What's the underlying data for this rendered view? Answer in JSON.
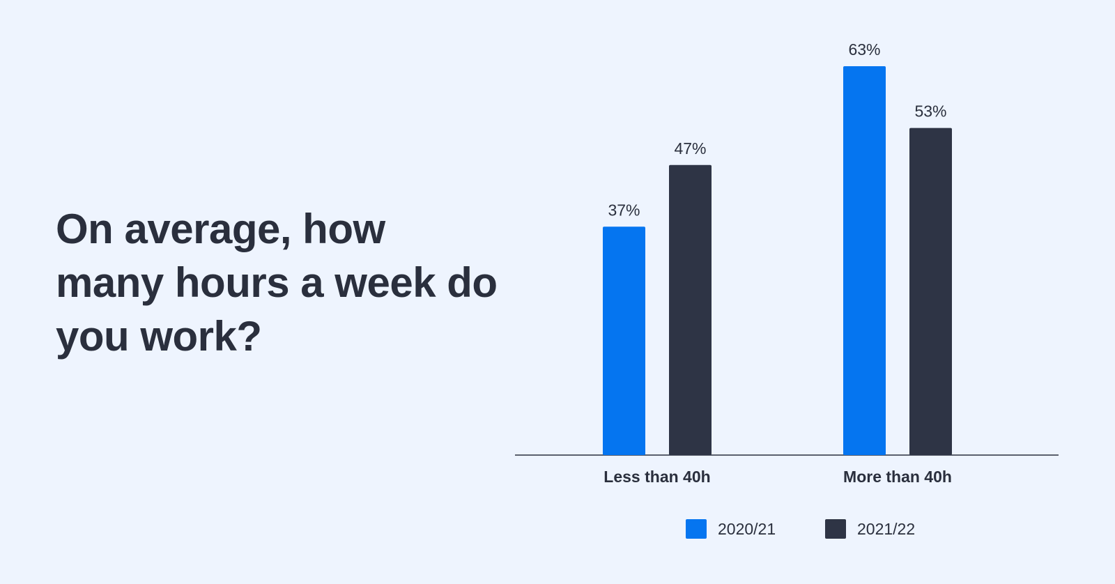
{
  "chart_data": {
    "type": "bar",
    "title": "On average, how many hours a week do you work?",
    "categories": [
      "Less than 40h",
      "More than 40h"
    ],
    "series": [
      {
        "name": "2020/21",
        "color": "#0575f0",
        "values": [
          37,
          63
        ],
        "value_labels": [
          "37%",
          "63%"
        ]
      },
      {
        "name": "2021/22",
        "color": "#2e3445",
        "values": [
          47,
          53
        ],
        "value_labels": [
          "47%",
          "53%"
        ]
      }
    ],
    "legend": "bottom"
  }
}
